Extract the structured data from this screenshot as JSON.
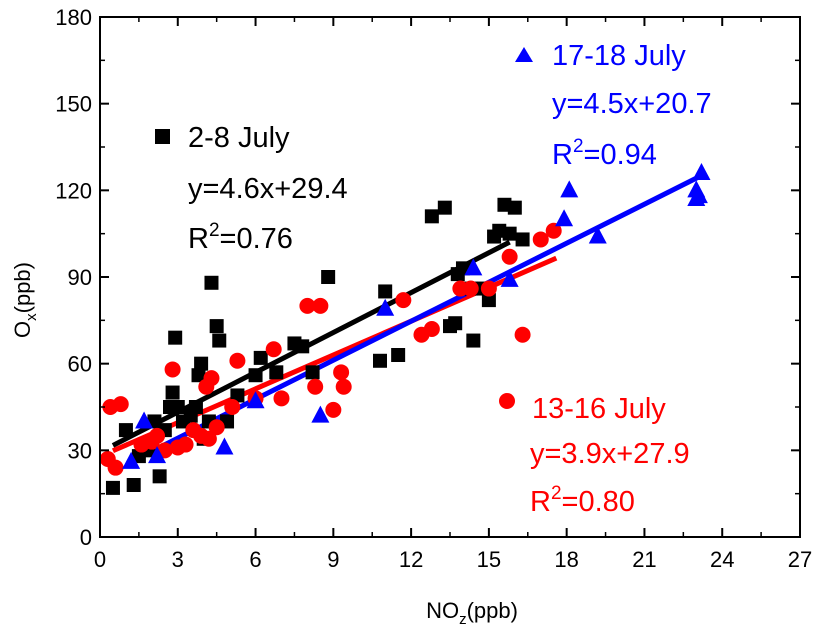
{
  "chart_data": {
    "type": "scatter",
    "xlabel": {
      "main": "NO",
      "sub": "z",
      "unit": "(ppb)"
    },
    "ylabel": {
      "main": "O",
      "sub": "x",
      "unit": "(ppb)"
    },
    "xlim": [
      0,
      27
    ],
    "ylim": [
      0,
      180
    ],
    "xticks": [
      0,
      3,
      6,
      9,
      12,
      15,
      18,
      21,
      24,
      27
    ],
    "yticks": [
      0,
      30,
      60,
      90,
      120,
      150,
      180
    ],
    "grid": false,
    "series": [
      {
        "name": "2-8 July",
        "marker": "square",
        "color": "#000000",
        "fit": {
          "equation": "y=4.6x+29.4",
          "r2_prefix": "R",
          "r2_sup": "2",
          "r2_value": "=0.76",
          "x_range": [
            0.5,
            15.8
          ]
        },
        "points": [
          [
            0.5,
            17
          ],
          [
            1.0,
            37
          ],
          [
            1.3,
            18
          ],
          [
            1.5,
            28
          ],
          [
            1.9,
            30
          ],
          [
            2.1,
            40
          ],
          [
            2.3,
            21
          ],
          [
            2.5,
            37
          ],
          [
            2.7,
            45
          ],
          [
            2.8,
            50
          ],
          [
            2.9,
            69
          ],
          [
            3.0,
            45
          ],
          [
            3.2,
            40
          ],
          [
            3.5,
            42
          ],
          [
            3.7,
            45
          ],
          [
            3.8,
            56
          ],
          [
            3.9,
            60
          ],
          [
            4.0,
            34
          ],
          [
            4.2,
            40
          ],
          [
            4.3,
            88
          ],
          [
            4.5,
            73
          ],
          [
            4.6,
            68
          ],
          [
            4.9,
            40
          ],
          [
            5.3,
            49
          ],
          [
            6.0,
            56
          ],
          [
            6.2,
            62
          ],
          [
            6.8,
            57
          ],
          [
            7.5,
            67
          ],
          [
            7.8,
            66
          ],
          [
            8.2,
            57
          ],
          [
            8.8,
            90
          ],
          [
            10.8,
            61
          ],
          [
            11.0,
            85
          ],
          [
            11.5,
            63
          ],
          [
            12.8,
            111
          ],
          [
            13.3,
            114
          ],
          [
            13.5,
            73
          ],
          [
            13.7,
            74
          ],
          [
            13.8,
            91
          ],
          [
            14.0,
            93
          ],
          [
            14.3,
            86
          ],
          [
            14.4,
            68
          ],
          [
            14.8,
            86
          ],
          [
            15.0,
            82
          ],
          [
            15.2,
            104
          ],
          [
            15.4,
            106
          ],
          [
            15.6,
            115
          ],
          [
            15.8,
            105
          ],
          [
            16.0,
            114
          ],
          [
            16.3,
            103
          ]
        ]
      },
      {
        "name": "13-16 July",
        "marker": "circle",
        "color": "#ff0000",
        "fit": {
          "equation": "y=3.9x+27.9",
          "r2_prefix": "R",
          "r2_sup": "2",
          "r2_value": "=0.80",
          "x_range": [
            0.5,
            17.6
          ]
        },
        "points": [
          [
            0.3,
            27
          ],
          [
            0.4,
            45
          ],
          [
            0.6,
            24
          ],
          [
            0.8,
            46
          ],
          [
            1.6,
            32
          ],
          [
            2.0,
            33
          ],
          [
            2.2,
            35
          ],
          [
            2.5,
            30
          ],
          [
            2.8,
            58
          ],
          [
            3.0,
            31
          ],
          [
            3.3,
            32
          ],
          [
            3.6,
            37
          ],
          [
            3.9,
            35
          ],
          [
            4.1,
            52
          ],
          [
            4.2,
            34
          ],
          [
            4.3,
            55
          ],
          [
            4.5,
            38
          ],
          [
            5.1,
            45
          ],
          [
            5.3,
            61
          ],
          [
            6.0,
            48
          ],
          [
            6.7,
            65
          ],
          [
            7.0,
            48
          ],
          [
            8.0,
            80
          ],
          [
            8.3,
            52
          ],
          [
            8.5,
            80
          ],
          [
            9.0,
            44
          ],
          [
            9.3,
            57
          ],
          [
            9.4,
            52
          ],
          [
            11.7,
            82
          ],
          [
            12.4,
            70
          ],
          [
            12.8,
            72
          ],
          [
            13.9,
            86
          ],
          [
            14.3,
            86
          ],
          [
            15.0,
            86
          ],
          [
            15.8,
            97
          ],
          [
            16.3,
            70
          ],
          [
            17.0,
            103
          ],
          [
            17.5,
            106
          ]
        ]
      },
      {
        "name": "17-18 July",
        "marker": "triangle",
        "color": "#0000ff",
        "fit": {
          "equation": "y=4.5x+20.7",
          "r2_prefix": "R",
          "r2_sup": "2",
          "r2_value": "=0.94",
          "x_range": [
            1.2,
            23.1
          ]
        },
        "points": [
          [
            1.2,
            26
          ],
          [
            1.7,
            40
          ],
          [
            2.2,
            28
          ],
          [
            4.8,
            31
          ],
          [
            6.0,
            47
          ],
          [
            8.5,
            42
          ],
          [
            11.0,
            79
          ],
          [
            14.4,
            93
          ],
          [
            15.8,
            89
          ],
          [
            17.9,
            110
          ],
          [
            18.1,
            120
          ],
          [
            19.2,
            104
          ],
          [
            23.0,
            117
          ],
          [
            23.0,
            120
          ],
          [
            23.1,
            118
          ],
          [
            23.2,
            126
          ]
        ]
      }
    ]
  }
}
